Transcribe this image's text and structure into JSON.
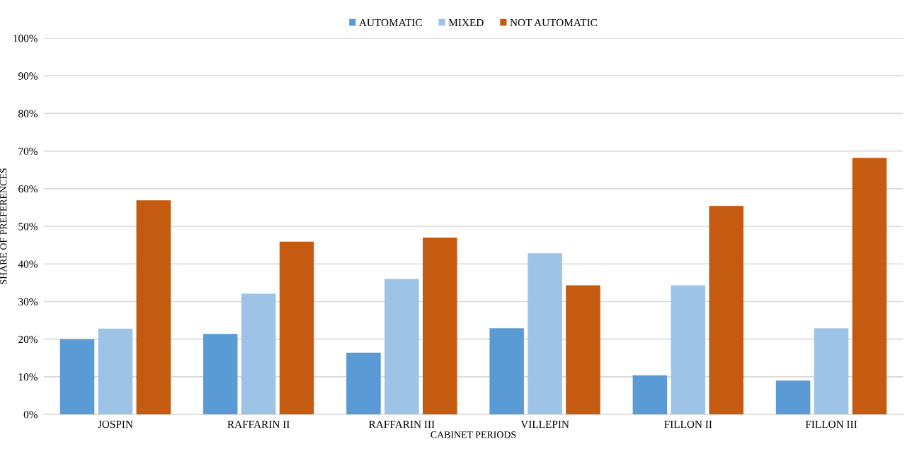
{
  "chart_data": {
    "type": "bar",
    "xlabel": "CABINET PERIODS",
    "ylabel": "SHARE OF PREFERENCES",
    "categories": [
      "JOSPIN",
      "RAFFARIN II",
      "RAFFARIN III",
      "VILLEPIN",
      "FILLON II",
      "FILLON III"
    ],
    "series": [
      {
        "name": "AUTOMATIC",
        "color": "#5b9bd5",
        "values": [
          20,
          21.4,
          16.4,
          22.9,
          10.4,
          9.0
        ]
      },
      {
        "name": "MIXED",
        "color": "#9dc3e6",
        "values": [
          22.8,
          32.1,
          36,
          42.8,
          34.3,
          22.9
        ]
      },
      {
        "name": "NOT AUTOMATIC",
        "color": "#c55a11",
        "values": [
          56.9,
          45.9,
          47,
          34.3,
          55.4,
          68.2
        ]
      }
    ],
    "ylim": [
      0,
      100
    ],
    "yticks": [
      {
        "value": 0,
        "label": "0%"
      },
      {
        "value": 10,
        "label": "10%"
      },
      {
        "value": 20,
        "label": "20%"
      },
      {
        "value": 30,
        "label": "30%"
      },
      {
        "value": 40,
        "label": "40%"
      },
      {
        "value": 50,
        "label": "50%"
      },
      {
        "value": 60,
        "label": "60%"
      },
      {
        "value": 70,
        "label": "70%"
      },
      {
        "value": 80,
        "label": "80%"
      },
      {
        "value": 90,
        "label": "90%"
      },
      {
        "value": 100,
        "label": "100%"
      }
    ],
    "grid": "y",
    "legend": "top"
  }
}
